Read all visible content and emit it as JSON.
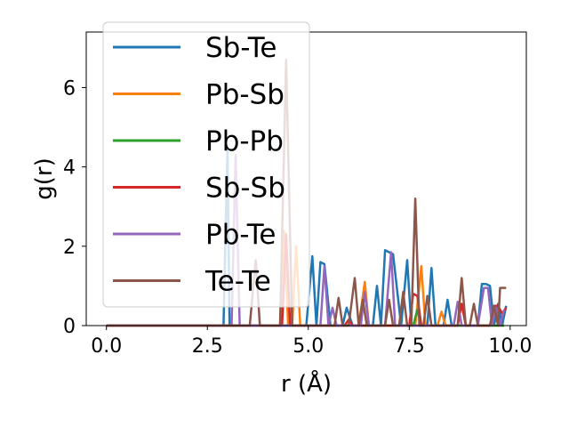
{
  "chart_data": {
    "type": "line",
    "title": "",
    "xlabel": "r (Å)",
    "ylabel": "g(r)",
    "xlim": [
      -0.5,
      10.4
    ],
    "ylim": [
      0,
      7.4
    ],
    "xticks": [
      0.0,
      2.5,
      5.0,
      7.5,
      10.0
    ],
    "xtick_labels": [
      "0.0",
      "2.5",
      "5.0",
      "7.5",
      "10.0"
    ],
    "yticks": [
      0,
      2,
      4,
      6
    ],
    "ytick_labels": [
      "0",
      "2",
      "4",
      "6"
    ],
    "grid": false,
    "legend_position": "top-left",
    "series": [
      {
        "name": "Sb-Te",
        "color": "#1f77b4",
        "points": [
          [
            0,
            0
          ],
          [
            2.9,
            0
          ],
          [
            3.0,
            4.5
          ],
          [
            3.05,
            0
          ],
          [
            4.95,
            0
          ],
          [
            5.1,
            1.75
          ],
          [
            5.2,
            0
          ],
          [
            5.3,
            1.6
          ],
          [
            5.4,
            1.55
          ],
          [
            5.55,
            0
          ],
          [
            5.85,
            0
          ],
          [
            5.95,
            0.45
          ],
          [
            6.1,
            0
          ],
          [
            6.6,
            0
          ],
          [
            6.7,
            1.0
          ],
          [
            6.8,
            0
          ],
          [
            6.9,
            1.9
          ],
          [
            7.0,
            1.85
          ],
          [
            7.1,
            1.8
          ],
          [
            7.3,
            0
          ],
          [
            7.45,
            1.65
          ],
          [
            7.55,
            0
          ],
          [
            7.95,
            0
          ],
          [
            8.05,
            1.45
          ],
          [
            8.15,
            0
          ],
          [
            8.35,
            0
          ],
          [
            8.45,
            0.65
          ],
          [
            8.55,
            0
          ],
          [
            9.2,
            0
          ],
          [
            9.3,
            1.05
          ],
          [
            9.4,
            1.05
          ],
          [
            9.5,
            1.0
          ],
          [
            9.6,
            0
          ],
          [
            9.7,
            0.55
          ],
          [
            9.8,
            0
          ],
          [
            9.9,
            0.5
          ]
        ]
      },
      {
        "name": "Pb-Sb",
        "color": "#ff7f0e",
        "points": [
          [
            0,
            0
          ],
          [
            4.3,
            0
          ],
          [
            4.4,
            2.4
          ],
          [
            4.5,
            0
          ],
          [
            4.6,
            0
          ],
          [
            4.7,
            2.0
          ],
          [
            4.8,
            0
          ],
          [
            6.25,
            0
          ],
          [
            6.4,
            1.1
          ],
          [
            6.5,
            0
          ],
          [
            7.65,
            0
          ],
          [
            7.8,
            1.5
          ],
          [
            7.9,
            0
          ],
          [
            8.2,
            0
          ],
          [
            8.3,
            0.35
          ],
          [
            8.4,
            0
          ],
          [
            9.85,
            0
          ]
        ]
      },
      {
        "name": "Pb-Pb",
        "color": "#2ca02c",
        "points": [
          [
            0,
            0
          ],
          [
            7.6,
            0
          ],
          [
            7.7,
            0.4
          ],
          [
            7.8,
            0
          ],
          [
            9.85,
            0
          ]
        ]
      },
      {
        "name": "Sb-Sb",
        "color": "#d62728",
        "points": [
          [
            0,
            0
          ],
          [
            4.35,
            0
          ],
          [
            4.45,
            2.3
          ],
          [
            4.55,
            0
          ],
          [
            5.9,
            0
          ],
          [
            6.0,
            0.15
          ],
          [
            6.1,
            0
          ],
          [
            7.5,
            0
          ],
          [
            7.6,
            0.8
          ],
          [
            7.7,
            0.75
          ],
          [
            7.8,
            0
          ],
          [
            8.7,
            0
          ],
          [
            8.8,
            0.55
          ],
          [
            8.9,
            0
          ],
          [
            9.5,
            0
          ],
          [
            9.6,
            0.5
          ],
          [
            9.7,
            0.5
          ],
          [
            9.8,
            0.3
          ],
          [
            9.9,
            0.45
          ]
        ]
      },
      {
        "name": "Pb-Te",
        "color": "#9467bd",
        "points": [
          [
            0,
            0
          ],
          [
            3.1,
            0
          ],
          [
            3.2,
            4.3
          ],
          [
            3.3,
            0
          ],
          [
            5.3,
            0
          ],
          [
            5.4,
            1.5
          ],
          [
            5.5,
            0
          ],
          [
            5.6,
            0.45
          ],
          [
            5.7,
            0
          ],
          [
            6.3,
            0
          ],
          [
            6.4,
            0.85
          ],
          [
            6.5,
            0
          ],
          [
            6.9,
            0
          ],
          [
            7.05,
            1.85
          ],
          [
            7.15,
            0
          ],
          [
            8.6,
            0
          ],
          [
            8.7,
            0.6
          ],
          [
            8.8,
            0
          ],
          [
            9.2,
            0
          ],
          [
            9.35,
            0.95
          ],
          [
            9.45,
            0.95
          ],
          [
            9.55,
            0
          ],
          [
            9.65,
            0.45
          ],
          [
            9.75,
            0
          ],
          [
            9.85,
            0.4
          ]
        ]
      },
      {
        "name": "Te-Te",
        "color": "#8c564b",
        "points": [
          [
            0,
            0
          ],
          [
            3.55,
            0
          ],
          [
            3.7,
            1.65
          ],
          [
            3.8,
            0
          ],
          [
            4.3,
            0
          ],
          [
            4.45,
            6.7
          ],
          [
            4.6,
            0
          ],
          [
            5.65,
            0
          ],
          [
            5.75,
            0.7
          ],
          [
            5.85,
            0
          ],
          [
            6.0,
            0
          ],
          [
            6.15,
            1.2
          ],
          [
            6.25,
            0
          ],
          [
            6.35,
            0.65
          ],
          [
            6.45,
            0
          ],
          [
            6.9,
            0
          ],
          [
            7.0,
            0.65
          ],
          [
            7.1,
            0
          ],
          [
            7.25,
            0
          ],
          [
            7.35,
            0.85
          ],
          [
            7.45,
            0
          ],
          [
            7.55,
            0
          ],
          [
            7.65,
            3.2
          ],
          [
            7.75,
            0
          ],
          [
            7.85,
            0
          ],
          [
            7.95,
            0.75
          ],
          [
            8.05,
            0
          ],
          [
            8.7,
            0
          ],
          [
            8.8,
            1.2
          ],
          [
            8.9,
            0
          ],
          [
            9.0,
            0
          ],
          [
            9.1,
            0.55
          ],
          [
            9.2,
            0
          ],
          [
            9.5,
            0
          ],
          [
            9.6,
            0.5
          ],
          [
            9.7,
            0
          ],
          [
            9.75,
            0.95
          ],
          [
            9.9,
            0.95
          ]
        ]
      }
    ]
  }
}
